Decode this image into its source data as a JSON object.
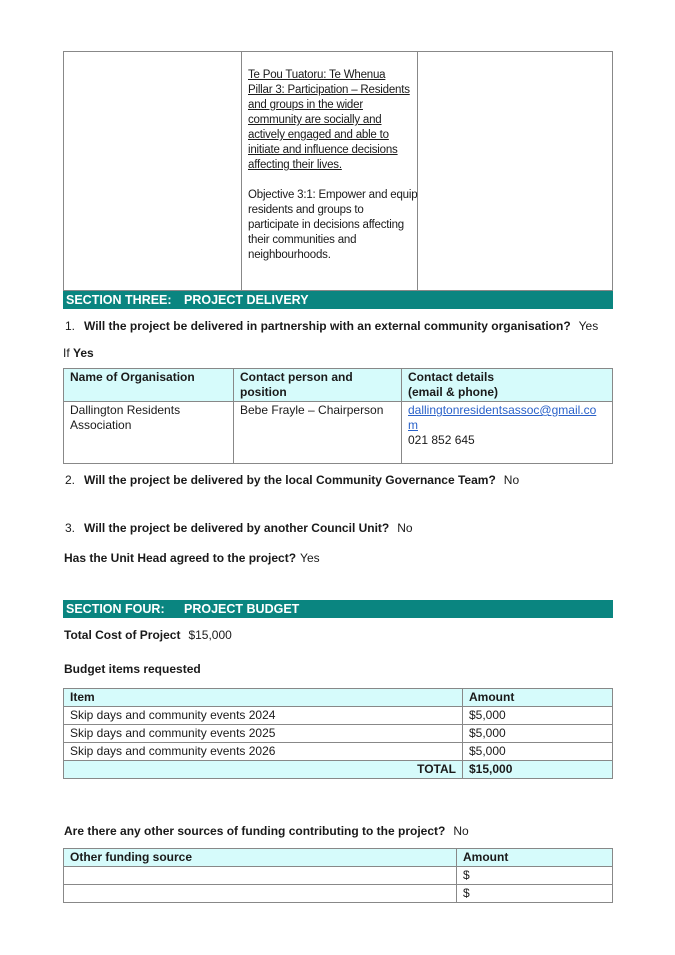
{
  "top_table": {
    "pillar_lines": [
      "Te Pou Tuatoru: Te Whenua",
      "Pillar 3: Participation – Residents",
      "and groups in the wider",
      "community are socially and",
      "actively engaged and able to",
      "initiate and influence decisions",
      "affecting their lives."
    ],
    "objective_lines": [
      "Objective 3:1: Empower and equip",
      "residents and groups to",
      "participate in decisions affecting",
      "their communities and",
      "neighbourhoods."
    ]
  },
  "section3": {
    "label": "SECTION THREE:",
    "title": "PROJECT DELIVERY"
  },
  "q1": {
    "num": "1.",
    "text": "Will the project be delivered in partnership with an external community organisation?",
    "answer": "Yes"
  },
  "if_yes": {
    "prefix": "If ",
    "word": "Yes"
  },
  "contact_table": {
    "headers": [
      "Name of Organisation",
      "Contact person and position",
      "Contact details",
      "(email & phone)"
    ],
    "org": [
      "Dallington Residents",
      "Association"
    ],
    "person": "Bebe Frayle – Chairperson",
    "email": "dallingtonresidentsassoc@gmail.com",
    "phone": "021 852 645"
  },
  "q2": {
    "num": "2.",
    "text": "Will the project be delivered by the local Community Governance Team?",
    "answer": "No"
  },
  "q3": {
    "num": "3.",
    "text": "Will the project be delivered by another Council Unit?",
    "answer": "No"
  },
  "unit_head": {
    "text": "Has the Unit Head agreed to the project?",
    "answer": "Yes"
  },
  "section4": {
    "label": "SECTION FOUR:",
    "title": "PROJECT BUDGET"
  },
  "total_cost": {
    "label": "Total Cost of Project",
    "value": "$15,000"
  },
  "budget_heading": "Budget items requested",
  "budget_table": {
    "headers": [
      "Item",
      "Amount"
    ],
    "rows": [
      [
        "Skip days and community events 2024",
        "$5,000"
      ],
      [
        "Skip days and community events 2025",
        "$5,000"
      ],
      [
        "Skip days and community events 2026",
        "$5,000"
      ]
    ],
    "total_label": "TOTAL",
    "total_value": "$15,000"
  },
  "other_sources": {
    "text": "Are there any other sources of funding contributing to the project?",
    "answer": "No"
  },
  "other_table": {
    "headers": [
      "Other funding source",
      "Amount"
    ],
    "rows": [
      [
        "",
        "$"
      ],
      [
        "",
        "$"
      ]
    ]
  },
  "colors": {
    "section_bar": "#0a8580",
    "header_fill": "#d6fbfb",
    "link": "#2a62c9"
  }
}
